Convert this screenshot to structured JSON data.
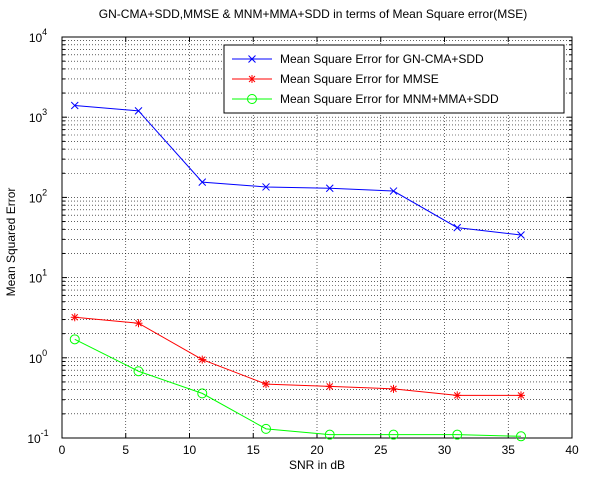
{
  "chart_data": {
    "type": "line",
    "title": "GN-CMA+SDD,MMSE & MNM+MMA+SDD in terms of Mean Square error(MSE)",
    "xlabel": "SNR in dB",
    "ylabel": "Mean Squared Error",
    "xlim": [
      0,
      40
    ],
    "ylim": [
      0.1,
      10000
    ],
    "yscale": "log",
    "grid": true,
    "legend_position": "top-right",
    "x_ticks": [
      "0",
      "5",
      "10",
      "15",
      "20",
      "25",
      "30",
      "35",
      "40"
    ],
    "y_ticks": [
      {
        "base": "10",
        "exp": "-1"
      },
      {
        "base": "10",
        "exp": "0"
      },
      {
        "base": "10",
        "exp": "1"
      },
      {
        "base": "10",
        "exp": "2"
      },
      {
        "base": "10",
        "exp": "3"
      },
      {
        "base": "10",
        "exp": "4"
      }
    ],
    "x": [
      1,
      6,
      11,
      16,
      21,
      26,
      31,
      36
    ],
    "series": [
      {
        "name": "Mean Square Error for GN-CMA+SDD",
        "color": "#0000ff",
        "marker": "x",
        "values": [
          1400,
          1200,
          155,
          135,
          130,
          120,
          42,
          34
        ]
      },
      {
        "name": "Mean Square Error for MMSE",
        "color": "#ff0000",
        "marker": "*",
        "values": [
          3.2,
          2.7,
          0.95,
          0.47,
          0.44,
          0.41,
          0.34,
          0.34
        ]
      },
      {
        "name": "Mean Square Error for MNM+MMA+SDD",
        "color": "#00ff00",
        "marker": "o",
        "values": [
          1.7,
          0.68,
          0.36,
          0.13,
          0.11,
          0.11,
          0.11,
          0.105
        ]
      }
    ]
  }
}
